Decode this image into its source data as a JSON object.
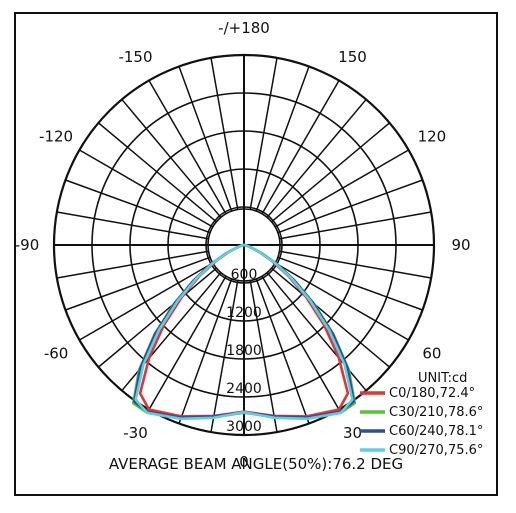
{
  "chart_data": {
    "type": "polar",
    "title": "",
    "footer": "AVERAGE BEAM ANGLE(50%):76.2 DEG",
    "unit_label": "UNIT:cd",
    "r_max": 3000,
    "radial_ticks": [
      600,
      1200,
      1800,
      2400,
      3000
    ],
    "radial_tick_labels": [
      "600",
      "1200",
      "1800",
      "2400",
      "3000"
    ],
    "angle_labels": [
      {
        "angle": 0,
        "label": "0"
      },
      {
        "angle": 30,
        "label": "30"
      },
      {
        "angle": -30,
        "label": "-30"
      },
      {
        "angle": 60,
        "label": "60"
      },
      {
        "angle": -60,
        "label": "-60"
      },
      {
        "angle": 90,
        "label": "90"
      },
      {
        "angle": -90,
        "label": "-90"
      },
      {
        "angle": 120,
        "label": "120"
      },
      {
        "angle": -120,
        "label": "-120"
      },
      {
        "angle": 150,
        "label": "150"
      },
      {
        "angle": -150,
        "label": "-150"
      },
      {
        "angle": 180,
        "label": "-/+180"
      }
    ],
    "series": [
      {
        "name": "C0/180,72.4°",
        "color": "#e63232",
        "angles": [
          0,
          10,
          20,
          30,
          35,
          40,
          45,
          50,
          55,
          60,
          65,
          70,
          80,
          90
        ],
        "values": [
          2630,
          2740,
          2880,
          3000,
          2860,
          2330,
          1790,
          1280,
          860,
          520,
          280,
          120,
          30,
          0
        ]
      },
      {
        "name": "C30/210,78.6°",
        "color": "#5cc23a",
        "angles": [
          0,
          10,
          20,
          30,
          35,
          40,
          45,
          50,
          55,
          60,
          65,
          70,
          80,
          90
        ],
        "values": [
          2650,
          2760,
          2910,
          3060,
          3050,
          2580,
          2000,
          1440,
          970,
          600,
          320,
          140,
          30,
          0
        ]
      },
      {
        "name": "C60/240,78.1°",
        "color": "#2a4fa0",
        "angles": [
          0,
          10,
          20,
          30,
          35,
          40,
          45,
          50,
          55,
          60,
          65,
          70,
          80,
          90
        ],
        "values": [
          2640,
          2750,
          2900,
          3040,
          3020,
          2550,
          1980,
          1420,
          960,
          590,
          310,
          135,
          30,
          0
        ]
      },
      {
        "name": "C90/270,75.6°",
        "color": "#5ecfe0",
        "angles": [
          0,
          10,
          20,
          30,
          35,
          40,
          45,
          50,
          55,
          60,
          65,
          70,
          80,
          90
        ],
        "values": [
          2640,
          2770,
          2920,
          3060,
          2980,
          2470,
          1900,
          1360,
          910,
          560,
          300,
          130,
          30,
          0
        ]
      }
    ]
  }
}
